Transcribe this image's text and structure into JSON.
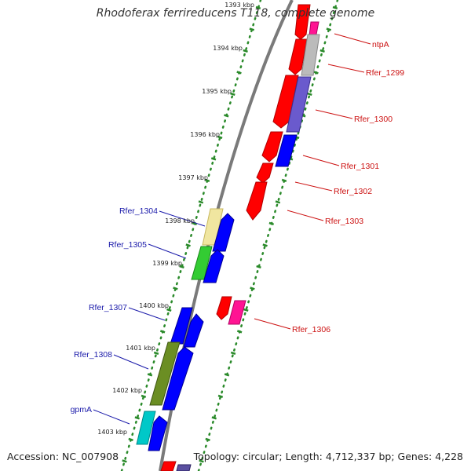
{
  "title": "Rhodoferax ferrireducens T118, complete genome",
  "footer": {
    "accession": "Accession: NC_007908",
    "topology": "Topology: circular; Length: 4,712,337 bp; Genes: 4,228"
  },
  "colors": {
    "backbone": "#7a7a7a",
    "ruler_tick": "#2a8a2a",
    "label_forward": "#1a1aaa",
    "label_reverse": "#cc1111"
  },
  "ruler": [
    {
      "label": "1393 kbp"
    },
    {
      "label": "1394 kbp"
    },
    {
      "label": "1395 kbp"
    },
    {
      "label": "1396 kbp"
    },
    {
      "label": "1397 kbp"
    },
    {
      "label": "1398 kbp"
    },
    {
      "label": "1399 kbp"
    },
    {
      "label": "1400 kbp"
    },
    {
      "label": "1401 kbp"
    },
    {
      "label": "1402 kbp"
    },
    {
      "label": "1403 kbp"
    }
  ],
  "gene_labels": {
    "left": [
      "Rfer_1304",
      "Rfer_1305",
      "Rfer_1307",
      "Rfer_1308",
      "gpmA"
    ],
    "right": [
      "ntpA",
      "Rfer_1299",
      "Rfer_1300",
      "Rfer_1301",
      "Rfer_1302",
      "Rfer_1303",
      "Rfer_1306"
    ]
  }
}
